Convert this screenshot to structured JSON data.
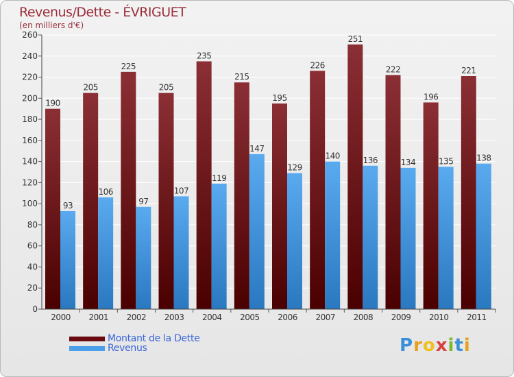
{
  "header": {
    "title": "Revenus/Dette - ÉVRIGUET",
    "subtitle": "(en milliers d'€)"
  },
  "colors": {
    "debt_top": "#8b2f35",
    "debt_bottom": "#4a0000",
    "revenue_top": "#5aaaf0",
    "revenue_bottom": "#2a78c0",
    "axis_text": "#333333",
    "legend_text": "#3a66d8"
  },
  "chart_data": {
    "type": "bar",
    "categories": [
      "2000",
      "2001",
      "2002",
      "2003",
      "2004",
      "2005",
      "2006",
      "2007",
      "2008",
      "2009",
      "2010",
      "2011"
    ],
    "series": [
      {
        "name": "Montant de la Dette",
        "values": [
          190,
          205,
          225,
          205,
          235,
          215,
          195,
          226,
          251,
          222,
          196,
          221
        ]
      },
      {
        "name": "Revenus",
        "values": [
          93,
          106,
          97,
          107,
          119,
          147,
          129,
          140,
          136,
          134,
          135,
          138
        ]
      }
    ],
    "title": "Revenus/Dette - ÉVRIGUET",
    "ylabel": "(en milliers d'€)",
    "ylim": [
      0,
      260
    ],
    "yticks": [
      0,
      20,
      40,
      60,
      80,
      100,
      120,
      140,
      160,
      180,
      200,
      220,
      240,
      260
    ],
    "grid": true,
    "legend_position": "bottom-left",
    "data_labels": true
  },
  "legend": {
    "items": [
      {
        "label": "Montant de la Dette",
        "color": "#6a0a10"
      },
      {
        "label": "Revenus",
        "color": "#4a9fe8"
      }
    ]
  },
  "logo": {
    "letters": [
      "P",
      "r",
      "o",
      "x",
      "i",
      "t",
      "i"
    ],
    "colors": [
      "#3a8fd8",
      "#e8a020",
      "#f0c020",
      "#d84040",
      "#7ab830",
      "#3a8fd8",
      "#e8a020"
    ]
  }
}
